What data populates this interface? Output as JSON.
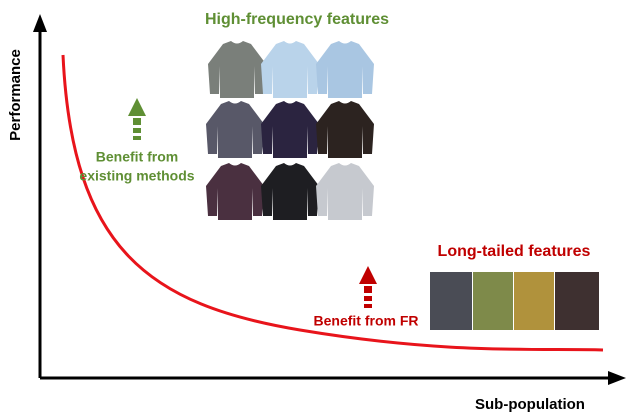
{
  "y_axis_label": "Performance",
  "x_axis_label": "Sub-population",
  "high_frequency": {
    "title": "High-frequency features",
    "benefit": [
      "Benefit from",
      "existing methods"
    ]
  },
  "long_tailed": {
    "title": "Long-tailed features",
    "benefit": "Benefit from FR"
  }
}
